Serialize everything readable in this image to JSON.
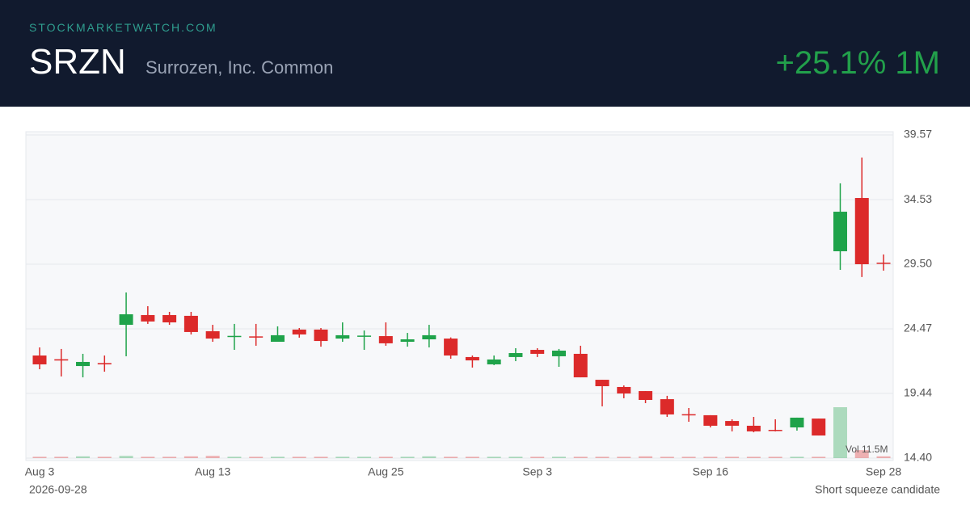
{
  "header": {
    "site": "STOCKMARKETWATCH.COM",
    "ticker": "SRZN",
    "name": "Surrozen, Inc. Common",
    "change": "+25.1% 1M"
  },
  "footer": {
    "date": "2026-09-28",
    "note": "Short squeeze candidate"
  },
  "chart_data": {
    "type": "candlestick",
    "categories": [
      "Aug 3",
      null,
      null,
      null,
      null,
      null,
      null,
      null,
      "Aug 13",
      null,
      null,
      null,
      null,
      null,
      null,
      null,
      "Aug 25",
      null,
      null,
      null,
      null,
      null,
      null,
      "Sep 3",
      null,
      null,
      null,
      null,
      null,
      null,
      null,
      "Sep 16",
      null,
      null,
      null,
      null,
      null,
      null,
      null,
      "Sep 28"
    ],
    "open": [
      22.39,
      22.1,
      21.57,
      21.8,
      24.78,
      25.54,
      25.54,
      25.48,
      24.28,
      23.88,
      23.88,
      23.46,
      24.41,
      24.41,
      23.71,
      23.9,
      23.9,
      23.46,
      23.65,
      23.71,
      22.27,
      21.7,
      22.27,
      22.83,
      22.33,
      22.52,
      20.5,
      19.94,
      19.62,
      18.99,
      17.82,
      17.74,
      17.29,
      16.92,
      16.6,
      16.79,
      17.48,
      30.51,
      34.66,
      29.62
    ],
    "high": [
      23.02,
      22.9,
      22.52,
      22.39,
      27.3,
      26.23,
      25.79,
      25.79,
      24.78,
      24.85,
      24.85,
      24.66,
      24.53,
      24.53,
      24.97,
      24.34,
      24.97,
      24.15,
      24.78,
      23.8,
      22.39,
      22.39,
      22.96,
      22.96,
      22.9,
      23.15,
      20.5,
      20.06,
      19.62,
      19.25,
      18.3,
      17.74,
      17.42,
      17.61,
      17.42,
      17.55,
      17.48,
      35.8,
      37.81,
      30.26
    ],
    "low": [
      21.32,
      20.76,
      20.69,
      21.13,
      22.33,
      24.85,
      24.78,
      24.03,
      23.46,
      22.83,
      23.15,
      23.46,
      23.78,
      23.08,
      23.46,
      22.83,
      23.15,
      23.08,
      23.02,
      22.14,
      21.45,
      21.64,
      21.95,
      22.27,
      21.51,
      20.69,
      18.43,
      19.06,
      18.68,
      17.61,
      17.23,
      16.79,
      16.48,
      16.41,
      16.48,
      16.54,
      16.16,
      29.06,
      28.5,
      29.0
    ],
    "close": [
      21.7,
      22.0,
      21.89,
      21.7,
      25.6,
      25.04,
      24.97,
      24.22,
      23.71,
      23.92,
      23.84,
      23.97,
      24.03,
      23.52,
      23.97,
      23.94,
      23.34,
      23.65,
      23.97,
      22.39,
      22.01,
      22.08,
      22.58,
      22.52,
      22.77,
      20.69,
      20.0,
      19.43,
      18.93,
      17.8,
      17.76,
      16.92,
      16.92,
      16.48,
      16.55,
      17.55,
      16.16,
      33.59,
      29.5,
      29.58
    ],
    "volume": [
      0.3,
      0.3,
      0.4,
      0.3,
      0.5,
      0.3,
      0.3,
      0.4,
      0.5,
      0.3,
      0.3,
      0.3,
      0.3,
      0.3,
      0.3,
      0.3,
      0.3,
      0.3,
      0.4,
      0.3,
      0.3,
      0.3,
      0.3,
      0.3,
      0.3,
      0.3,
      0.3,
      0.3,
      0.4,
      0.3,
      0.3,
      0.3,
      0.3,
      0.3,
      0.3,
      0.3,
      0.3,
      11.5,
      1.8,
      0.4
    ],
    "volume_label": "Vol 11.5M",
    "ylim": [
      14.4,
      39.57
    ],
    "yticks": [
      {
        "value": 14.4,
        "label": "14.40"
      },
      19.44,
      24.47,
      {
        "value": 29.5,
        "label": "29.50"
      },
      34.53,
      39.57
    ],
    "grid": true,
    "up_color": "#1fa34a",
    "down_color": "#dc2a2a"
  }
}
